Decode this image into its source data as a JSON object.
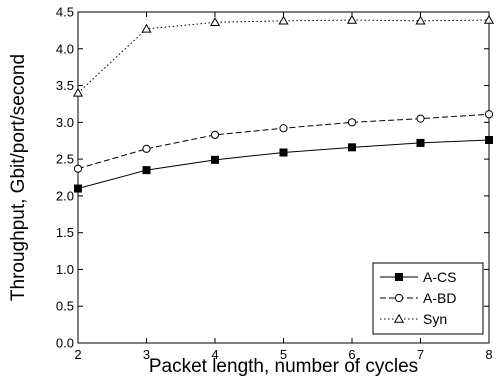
{
  "chart_data": {
    "type": "line",
    "title": "",
    "xlabel": "Packet length, number of cycles",
    "ylabel": "Throughput, Gbit/port/second",
    "x": [
      2,
      3,
      4,
      5,
      6,
      7,
      8
    ],
    "xlim": [
      2,
      8
    ],
    "ylim": [
      0,
      4.5
    ],
    "xticks": [
      "2",
      "3",
      "4",
      "5",
      "6",
      "7",
      "8"
    ],
    "yticks": [
      "0.0",
      "0.5",
      "1.0",
      "1.5",
      "2.0",
      "2.5",
      "3.0",
      "3.5",
      "4.0",
      "4.5"
    ],
    "grid": false,
    "legend_position": "lower-right",
    "series": [
      {
        "name": "A-CS",
        "values": [
          2.1,
          2.35,
          2.49,
          2.59,
          2.66,
          2.72,
          2.76
        ],
        "line": "solid",
        "marker": "filled-square"
      },
      {
        "name": "A-BD",
        "values": [
          2.37,
          2.64,
          2.83,
          2.92,
          3.0,
          3.05,
          3.11
        ],
        "line": "dashed",
        "marker": "open-circle"
      },
      {
        "name": "Syn",
        "values": [
          3.4,
          4.27,
          4.36,
          4.38,
          4.39,
          4.38,
          4.39
        ],
        "line": "dotted",
        "marker": "open-triangle"
      }
    ]
  }
}
